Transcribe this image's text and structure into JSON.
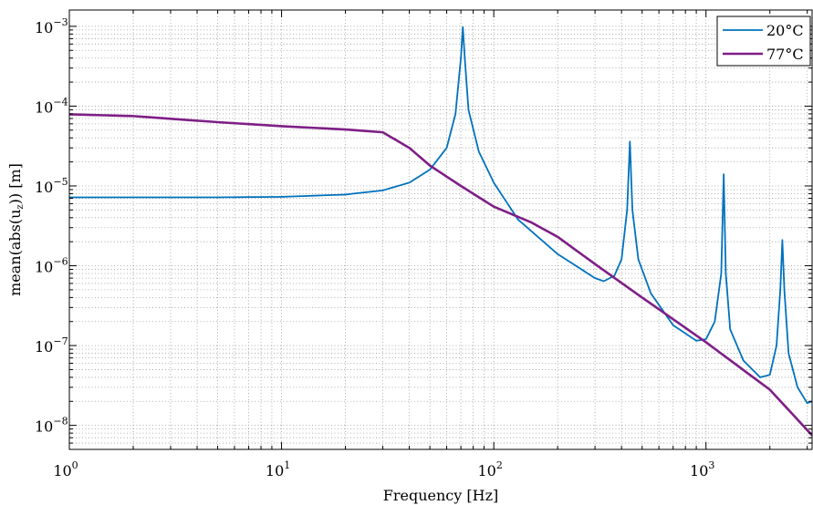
{
  "chart_data": {
    "type": "line",
    "xlabel": "Frequency [Hz]",
    "ylabel_main": "mean(abs(u",
    "ylabel_sub": "z",
    "ylabel_tail": ")) [m]",
    "xscale": "log",
    "yscale": "log",
    "xlim": [
      1,
      3162
    ],
    "ylim": [
      5e-09,
      0.0016
    ],
    "x_ticks": [
      {
        "value": 1,
        "base": "10",
        "exp": "0"
      },
      {
        "value": 10,
        "base": "10",
        "exp": "1"
      },
      {
        "value": 100,
        "base": "10",
        "exp": "2"
      },
      {
        "value": 1000,
        "base": "10",
        "exp": "3"
      }
    ],
    "y_ticks": [
      {
        "value": 1e-08,
        "base": "10",
        "exp": "−8"
      },
      {
        "value": 1e-07,
        "base": "10",
        "exp": "−7"
      },
      {
        "value": 1e-06,
        "base": "10",
        "exp": "−6"
      },
      {
        "value": 1e-05,
        "base": "10",
        "exp": "−5"
      },
      {
        "value": 0.0001,
        "base": "10",
        "exp": "−4"
      },
      {
        "value": 0.001,
        "base": "10",
        "exp": "−3"
      }
    ],
    "grid": "major and minor, dotted",
    "legend_position": "top-right",
    "series": [
      {
        "name": "20°C",
        "color": "#0072bd",
        "points": [
          [
            1,
            7.2e-06
          ],
          [
            5,
            7.2e-06
          ],
          [
            10,
            7.3e-06
          ],
          [
            20,
            7.8e-06
          ],
          [
            30,
            8.8e-06
          ],
          [
            40,
            1.1e-05
          ],
          [
            50,
            1.6e-05
          ],
          [
            60,
            3e-05
          ],
          [
            66,
            8e-05
          ],
          [
            70,
            0.0004
          ],
          [
            71.5,
            0.00098
          ],
          [
            73,
            0.0004
          ],
          [
            76,
            9e-05
          ],
          [
            85,
            2.7e-05
          ],
          [
            100,
            1.1e-05
          ],
          [
            130,
            3.8e-06
          ],
          [
            200,
            1.4e-06
          ],
          [
            300,
            7e-07
          ],
          [
            330,
            6.4e-07
          ],
          [
            370,
            7.5e-07
          ],
          [
            400,
            1.2e-06
          ],
          [
            425,
            5e-06
          ],
          [
            438,
            3.6e-05
          ],
          [
            450,
            5e-06
          ],
          [
            480,
            1.2e-06
          ],
          [
            550,
            4.5e-07
          ],
          [
            700,
            1.8e-07
          ],
          [
            900,
            1.15e-07
          ],
          [
            1000,
            1.2e-07
          ],
          [
            1100,
            2e-07
          ],
          [
            1180,
            8e-07
          ],
          [
            1212,
            1.4e-05
          ],
          [
            1240,
            8e-07
          ],
          [
            1300,
            1.6e-07
          ],
          [
            1500,
            6.5e-08
          ],
          [
            1800,
            4e-08
          ],
          [
            2000,
            4.3e-08
          ],
          [
            2150,
            1e-07
          ],
          [
            2240,
            5e-07
          ],
          [
            2290,
            2.1e-06
          ],
          [
            2340,
            5e-07
          ],
          [
            2450,
            8e-08
          ],
          [
            2700,
            3e-08
          ],
          [
            3000,
            1.9e-08
          ],
          [
            3162,
            2e-08
          ]
        ]
      },
      {
        "name": "77°C",
        "color": "#7e1f86",
        "points": [
          [
            1,
            7.9e-05
          ],
          [
            2,
            7.5e-05
          ],
          [
            5,
            6.3e-05
          ],
          [
            10,
            5.6e-05
          ],
          [
            20,
            5.1e-05
          ],
          [
            30,
            4.7e-05
          ],
          [
            40,
            3e-05
          ],
          [
            50,
            1.8e-05
          ],
          [
            70,
            1e-05
          ],
          [
            100,
            5.5e-06
          ],
          [
            150,
            3.5e-06
          ],
          [
            200,
            2.3e-06
          ],
          [
            300,
            1.05e-06
          ],
          [
            500,
            4e-07
          ],
          [
            1000,
            1.1e-07
          ],
          [
            2000,
            2.8e-08
          ],
          [
            3162,
            7.5e-09
          ]
        ]
      }
    ]
  }
}
